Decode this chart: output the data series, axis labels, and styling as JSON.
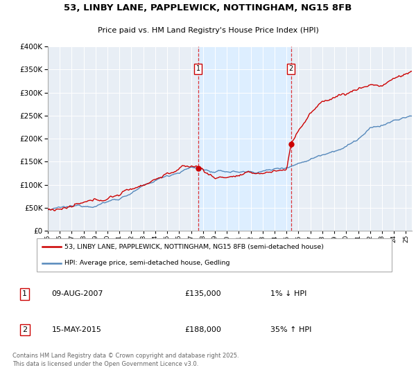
{
  "title_line1": "53, LINBY LANE, PAPPLEWICK, NOTTINGHAM, NG15 8FB",
  "title_line2": "Price paid vs. HM Land Registry's House Price Index (HPI)",
  "ylim": [
    0,
    400000
  ],
  "xlim_start": 1995.0,
  "xlim_end": 2025.5,
  "marker1_x": 2007.6,
  "marker1_y": 135000,
  "marker2_x": 2015.37,
  "marker2_y": 188000,
  "legend_line1": "53, LINBY LANE, PAPPLEWICK, NOTTINGHAM, NG15 8FB (semi-detached house)",
  "legend_line2": "HPI: Average price, semi-detached house, Gedling",
  "table_row1": [
    "1",
    "09-AUG-2007",
    "£135,000",
    "1% ↓ HPI"
  ],
  "table_row2": [
    "2",
    "15-MAY-2015",
    "£188,000",
    "35% ↑ HPI"
  ],
  "footnote": "Contains HM Land Registry data © Crown copyright and database right 2025.\nThis data is licensed under the Open Government Licence v3.0.",
  "color_red": "#cc0000",
  "color_blue": "#5588bb",
  "color_vline": "#dd2222",
  "shade_color": "#ddeeff",
  "plot_bg": "#e8eef5",
  "grid_color": "#ffffff"
}
